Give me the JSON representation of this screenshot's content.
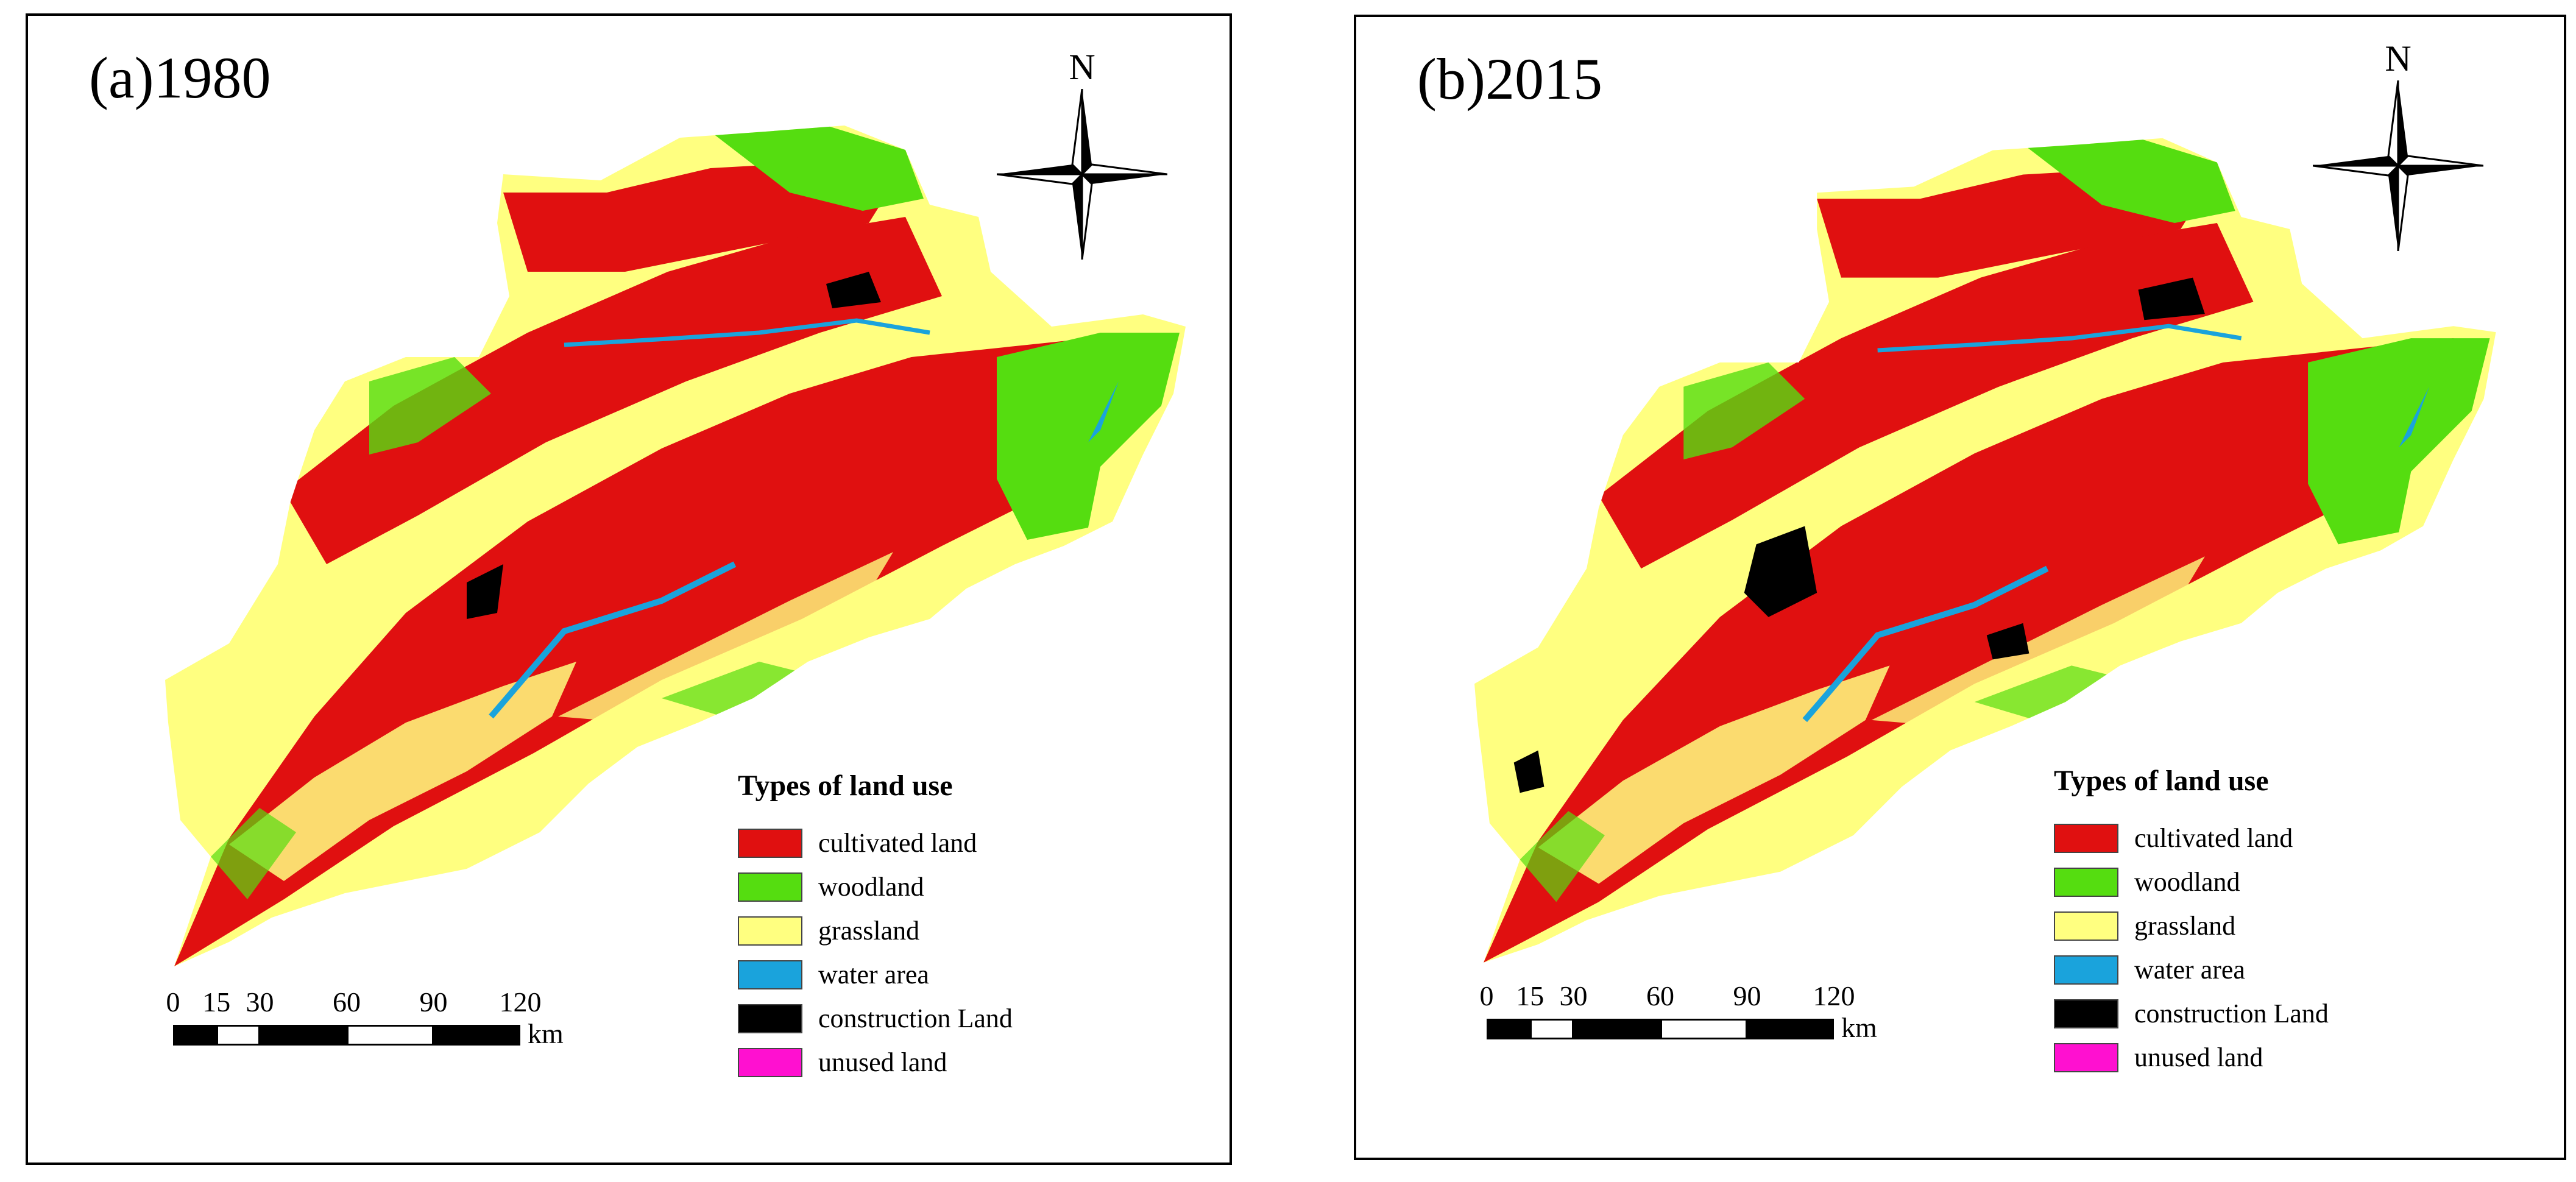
{
  "colors": {
    "cultivated": "#e01010",
    "woodland": "#55dd10",
    "grassland": "#ffff80",
    "water": "#1aa3dc",
    "construction": "#000000",
    "unused": "#ff10d0"
  },
  "north_label": "N",
  "legend": {
    "title": "Types of land use",
    "items": [
      {
        "label": "cultivated land",
        "color": "#e01010"
      },
      {
        "label": "woodland",
        "color": "#55dd10"
      },
      {
        "label": "grassland",
        "color": "#ffff80"
      },
      {
        "label": "water area",
        "color": "#1aa3dc"
      },
      {
        "label": "construction Land",
        "color": "#000000"
      },
      {
        "label": "unused land",
        "color": "#ff10d0"
      }
    ]
  },
  "scale": {
    "ticks": [
      "0",
      "15",
      "30",
      "60",
      "90",
      "120"
    ],
    "tick_values": [
      0,
      15,
      30,
      60,
      90,
      120
    ],
    "unit": "km"
  },
  "panels": [
    {
      "title": "(a)1980"
    },
    {
      "title": "(b)2015"
    }
  ]
}
